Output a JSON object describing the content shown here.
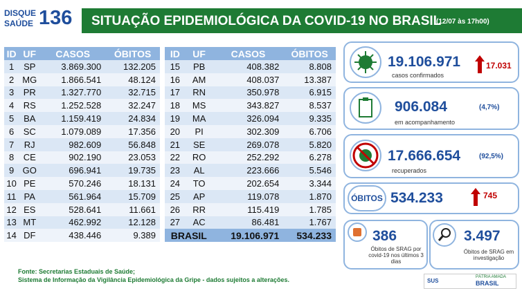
{
  "header": {
    "logo_line1": "DISQUE",
    "logo_line2": "SAÚDE",
    "logo_number": "136",
    "title": "SITUAÇÃO EPIDEMIOLÓGICA DA COVID-19 NO BRASIL",
    "date": "(12/07 às 17h00)"
  },
  "table1": {
    "columns": [
      "ID",
      "UF",
      "CASOS",
      "ÓBITOS"
    ],
    "rows": [
      [
        "1",
        "SP",
        "3.869.300",
        "132.205"
      ],
      [
        "2",
        "MG",
        "1.866.541",
        "48.124"
      ],
      [
        "3",
        "PR",
        "1.327.770",
        "32.715"
      ],
      [
        "4",
        "RS",
        "1.252.528",
        "32.247"
      ],
      [
        "5",
        "BA",
        "1.159.419",
        "24.834"
      ],
      [
        "6",
        "SC",
        "1.079.089",
        "17.356"
      ],
      [
        "7",
        "RJ",
        "982.609",
        "56.848"
      ],
      [
        "8",
        "CE",
        "902.190",
        "23.053"
      ],
      [
        "9",
        "GO",
        "696.941",
        "19.735"
      ],
      [
        "10",
        "PE",
        "570.246",
        "18.131"
      ],
      [
        "11",
        "PA",
        "561.964",
        "15.709"
      ],
      [
        "12",
        "ES",
        "528.641",
        "11.661"
      ],
      [
        "13",
        "MT",
        "462.992",
        "12.128"
      ],
      [
        "14",
        "DF",
        "438.446",
        "9.389"
      ]
    ]
  },
  "table2": {
    "columns": [
      "ID",
      "UF",
      "CASOS",
      "ÓBITOS"
    ],
    "rows": [
      [
        "15",
        "PB",
        "408.382",
        "8.808"
      ],
      [
        "16",
        "AM",
        "408.037",
        "13.387"
      ],
      [
        "17",
        "RN",
        "350.978",
        "6.915"
      ],
      [
        "18",
        "MS",
        "343.827",
        "8.537"
      ],
      [
        "19",
        "MA",
        "326.094",
        "9.335"
      ],
      [
        "20",
        "PI",
        "302.309",
        "6.706"
      ],
      [
        "21",
        "SE",
        "269.078",
        "5.820"
      ],
      [
        "22",
        "RO",
        "252.292",
        "6.278"
      ],
      [
        "23",
        "AL",
        "223.666",
        "5.546"
      ],
      [
        "24",
        "TO",
        "202.654",
        "3.344"
      ],
      [
        "25",
        "AP",
        "119.078",
        "1.870"
      ],
      [
        "26",
        "RR",
        "115.419",
        "1.785"
      ],
      [
        "27",
        "AC",
        "86.481",
        "1.767"
      ]
    ],
    "total": [
      "BRASIL",
      "19.106.971",
      "534.233"
    ]
  },
  "cards": {
    "confirmed": {
      "value": "19.106.971",
      "increase": "17.031",
      "label": "casos confirmados"
    },
    "monitoring": {
      "value": "906.084",
      "percent": "(4,7%)",
      "label": "em acompanhamento"
    },
    "recovered": {
      "value": "17.666.654",
      "percent": "(92,5%)",
      "label": "recuperados"
    },
    "deaths": {
      "badge": "ÓBITOS",
      "value": "534.233",
      "increase": "745"
    },
    "srag_recent": {
      "value": "386",
      "label": "Óbitos de SRAG por covid-19 nos últimos 3 dias"
    },
    "srag_investigation": {
      "value": "3.497",
      "label": "Óbitos de SRAG em investigação"
    }
  },
  "footer": {
    "line1": "Fonte: Secretarias Estaduais de Saúde;",
    "line2": "Sistema de Informação da Vigilância Epidemiológica da Gripe - dados sujeitos a alterações."
  },
  "logos": {
    "sus": "SUS",
    "motto": "PÁTRIA AMADA",
    "country": "BRASIL"
  }
}
